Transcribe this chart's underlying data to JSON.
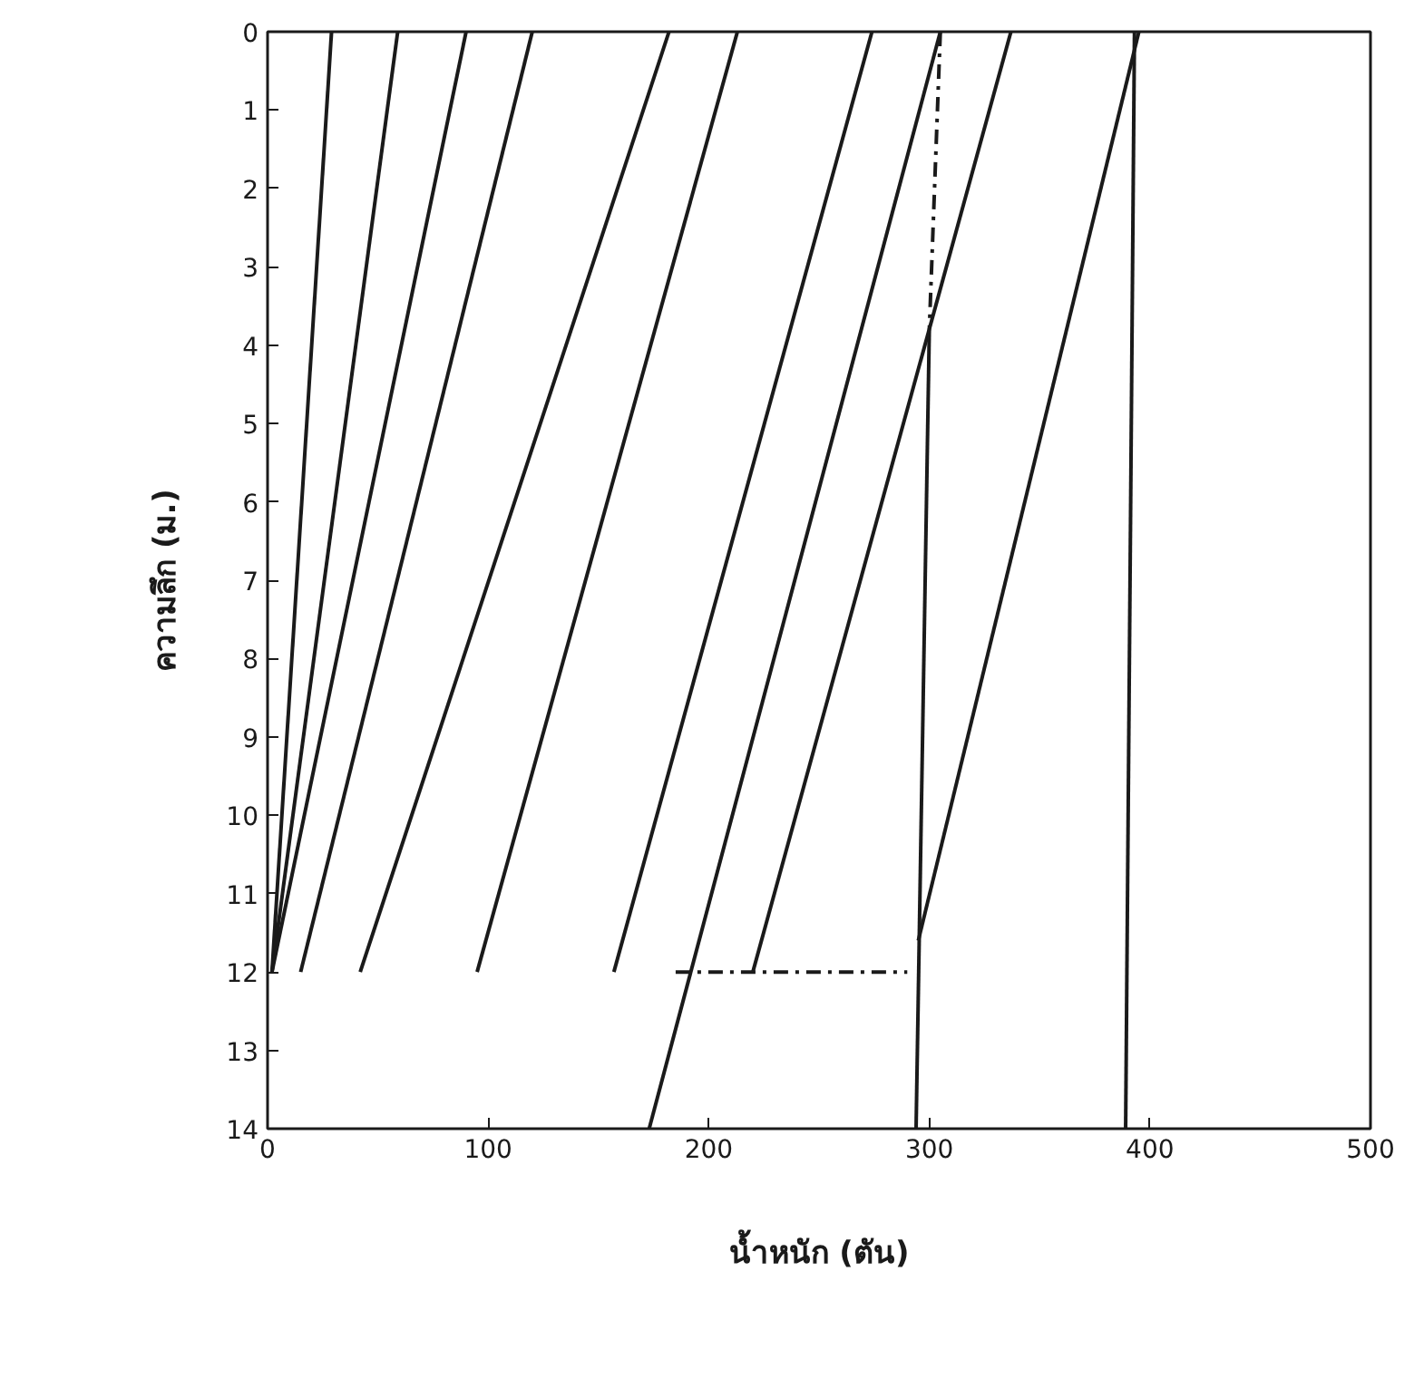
{
  "chart_data": {
    "type": "line",
    "xlabel": "น้ำหนัก (ตัน)",
    "ylabel": "ความลึก (ม.)",
    "xlim": [
      0,
      500
    ],
    "ylim": [
      14,
      0
    ],
    "xticks": [
      0,
      100,
      200,
      300,
      400,
      500
    ],
    "yticks": [
      0,
      1,
      2,
      3,
      4,
      5,
      6,
      7,
      8,
      9,
      10,
      11,
      12,
      13,
      14
    ],
    "grid": false,
    "series": [
      {
        "x": [
          29,
          2
        ],
        "values": [
          0,
          12
        ],
        "color": "#1a1a1a",
        "line_style": "solid"
      },
      {
        "x": [
          59,
          2
        ],
        "values": [
          0,
          12
        ],
        "color": "#1a1a1a",
        "line_style": "solid"
      },
      {
        "x": [
          90,
          2
        ],
        "values": [
          0,
          12
        ],
        "color": "#1a1a1a",
        "line_style": "solid"
      },
      {
        "x": [
          120,
          15
        ],
        "values": [
          0,
          12
        ],
        "color": "#1a1a1a",
        "line_style": "solid"
      },
      {
        "x": [
          182,
          42
        ],
        "values": [
          0,
          12
        ],
        "color": "#1a1a1a",
        "line_style": "solid"
      },
      {
        "x": [
          213,
          95
        ],
        "values": [
          0,
          12
        ],
        "color": "#1a1a1a",
        "line_style": "solid"
      },
      {
        "x": [
          274,
          157
        ],
        "values": [
          0,
          12
        ],
        "color": "#1a1a1a",
        "line_style": "solid"
      },
      {
        "x": [
          305,
          173
        ],
        "values": [
          0,
          14
        ],
        "color": "#1a1a1a",
        "line_style": "solid"
      },
      {
        "x": [
          337,
          220
        ],
        "values": [
          0,
          12
        ],
        "color": "#1a1a1a",
        "line_style": "solid"
      },
      {
        "x": [
          395,
          295
        ],
        "values": [
          0,
          11.6
        ],
        "color": "#1a1a1a",
        "line_style": "solid"
      },
      {
        "x": [
          305,
          300
        ],
        "values": [
          0,
          3.8
        ],
        "color": "#1a1a1a",
        "line_style": "dashed"
      },
      {
        "x": [
          300,
          294
        ],
        "values": [
          3.8,
          14
        ],
        "color": "#1a1a1a",
        "line_style": "solid"
      },
      {
        "x": [
          393,
          389
        ],
        "values": [
          0,
          14
        ],
        "color": "#1a1a1a",
        "line_style": "solid"
      },
      {
        "x": [
          185,
          290
        ],
        "values": [
          12,
          12
        ],
        "color": "#1a1a1a",
        "line_style": "dashed"
      }
    ]
  }
}
